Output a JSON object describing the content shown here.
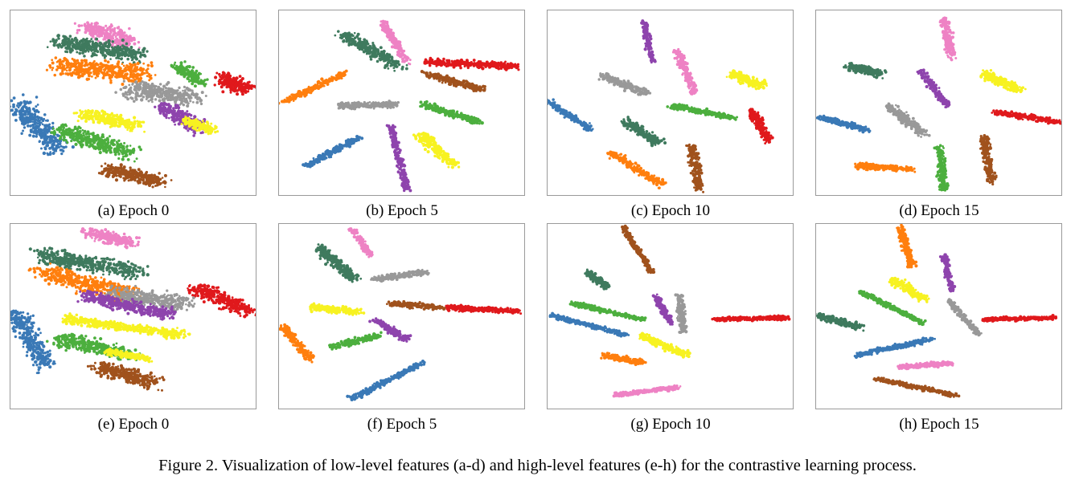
{
  "palette": {
    "blue": "#3a79b6",
    "orange": "#ff7f0e",
    "green": "#4caf3e",
    "red": "#e0191c",
    "purple": "#8e44ad",
    "brown": "#a0521d",
    "pink": "#ee82c4",
    "gray": "#999999",
    "yellow": "#f7f221",
    "darkgreen": "#3f7a5e"
  },
  "panels": [
    {
      "caption": "(a) Epoch 0"
    },
    {
      "caption": "(b) Epoch 5"
    },
    {
      "caption": "(c) Epoch 10"
    },
    {
      "caption": "(d) Epoch 15"
    },
    {
      "caption": "(e) Epoch 0"
    },
    {
      "caption": "(f) Epoch 5"
    },
    {
      "caption": "(g) Epoch 10"
    },
    {
      "caption": "(h) Epoch 15"
    }
  ],
  "figure_caption": "Figure 2.  Visualization of low-level features (a-d) and high-level features (e-h) for the contrastive learning process."
}
